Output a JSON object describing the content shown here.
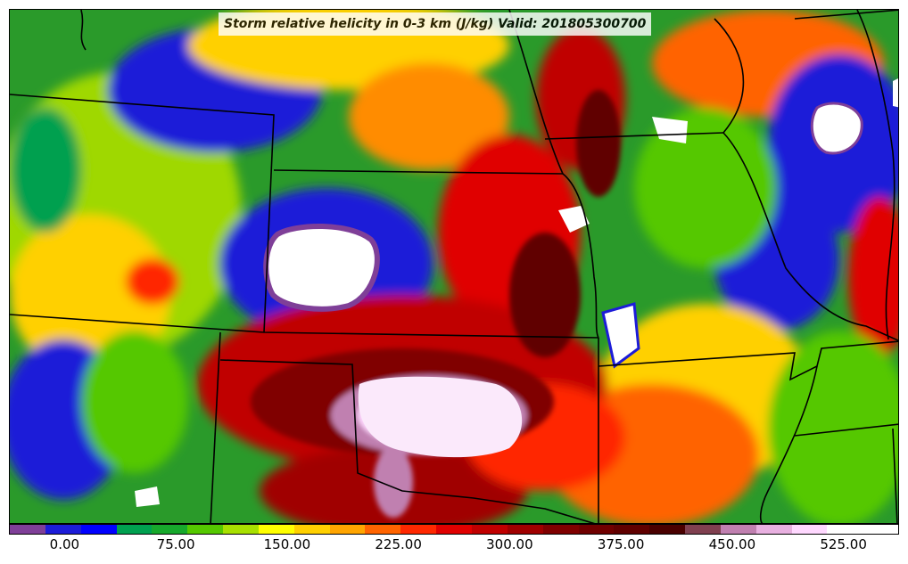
{
  "title": "Storm relative helicity in 0-3 km (J/kg) Valid: 201805300700",
  "colorbar": {
    "colors": [
      "#7f3f98",
      "#1c1cd8",
      "#0000ff",
      "#00a050",
      "#17a82c",
      "#55c800",
      "#a8e000",
      "#ffff00",
      "#ffd000",
      "#ffa500",
      "#ff6400",
      "#ff2800",
      "#e00000",
      "#c00000",
      "#a00000",
      "#800000",
      "#700000",
      "#600000",
      "#4a0000",
      "#804050",
      "#c080b0",
      "#e8b0e0",
      "#ffd8ff",
      "#ffffff",
      "#ffffff"
    ],
    "tick_labels": [
      "0.00",
      "75.00",
      "150.00",
      "225.00",
      "300.00",
      "375.00",
      "450.00",
      "525.00"
    ],
    "tick_values": [
      0,
      75,
      150,
      225,
      300,
      375,
      450,
      525
    ],
    "min": -37.5,
    "max": 562.5
  },
  "map": {
    "description_colors": {
      "background": "#2a9a2a",
      "borders": "#000000"
    }
  }
}
